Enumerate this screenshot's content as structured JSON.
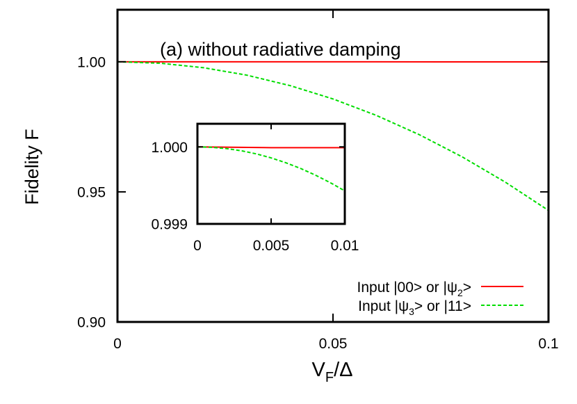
{
  "chart_data": [
    {
      "type": "line",
      "annotation": "(a) without radiative damping",
      "xlabel": {
        "main": "V",
        "sub": "F",
        "rest": "/Δ"
      },
      "ylabel": "Fidelity F",
      "xlim": [
        0,
        0.1
      ],
      "ylim": [
        0.9,
        1.02
      ],
      "xticks": [
        0,
        0.05,
        0.1
      ],
      "xtick_labels": [
        "0",
        "0.05",
        "0.1"
      ],
      "yticks": [
        0.9,
        0.95,
        1.0
      ],
      "ytick_labels": [
        "0.90",
        "0.95",
        "1.00"
      ],
      "grid": false,
      "legend_position": "bottom-right",
      "series": [
        {
          "name": {
            "pre": "Input |00> or |ψ",
            "sub": "2",
            "post": ">"
          },
          "color": "#ff0000",
          "dash": "solid",
          "x": [
            0,
            0.02,
            0.04,
            0.06,
            0.08,
            0.1
          ],
          "y": [
            1.0,
            1.0,
            0.99999,
            0.99998,
            0.99997,
            0.99995
          ]
        },
        {
          "name": {
            "pre": "Input |ψ",
            "sub": "3",
            "post": "> or |11>"
          },
          "color": "#00dd00",
          "dash": "dashed",
          "x": [
            0,
            0.01,
            0.02,
            0.03,
            0.04,
            0.05,
            0.06,
            0.07,
            0.08,
            0.09,
            0.1
          ],
          "y": [
            1.0,
            0.99943,
            0.99771,
            0.99486,
            0.99086,
            0.98571,
            0.97943,
            0.972,
            0.96343,
            0.95371,
            0.94286
          ]
        }
      ]
    },
    {
      "type": "line",
      "role": "inset",
      "xlim": [
        0,
        0.01
      ],
      "ylim": [
        0.999,
        1.0003
      ],
      "xticks": [
        0,
        0.005,
        0.01
      ],
      "xtick_labels": [
        "0",
        "0.005",
        "0.01"
      ],
      "yticks": [
        0.999,
        1.0
      ],
      "ytick_labels": [
        "0.999",
        "1.000"
      ],
      "series": [
        {
          "color": "#ff0000",
          "dash": "solid",
          "x": [
            0,
            0.005,
            0.01
          ],
          "y": [
            1.0,
            0.99999,
            0.99999
          ]
        },
        {
          "color": "#00dd00",
          "dash": "dashed",
          "x": [
            0,
            0.001,
            0.002,
            0.003,
            0.004,
            0.005,
            0.006,
            0.007,
            0.008,
            0.009,
            0.01
          ],
          "y": [
            1.0,
            0.999994,
            0.999977,
            0.999949,
            0.999909,
            0.999857,
            0.999794,
            0.99972,
            0.999634,
            0.999537,
            0.999429
          ]
        }
      ]
    }
  ]
}
